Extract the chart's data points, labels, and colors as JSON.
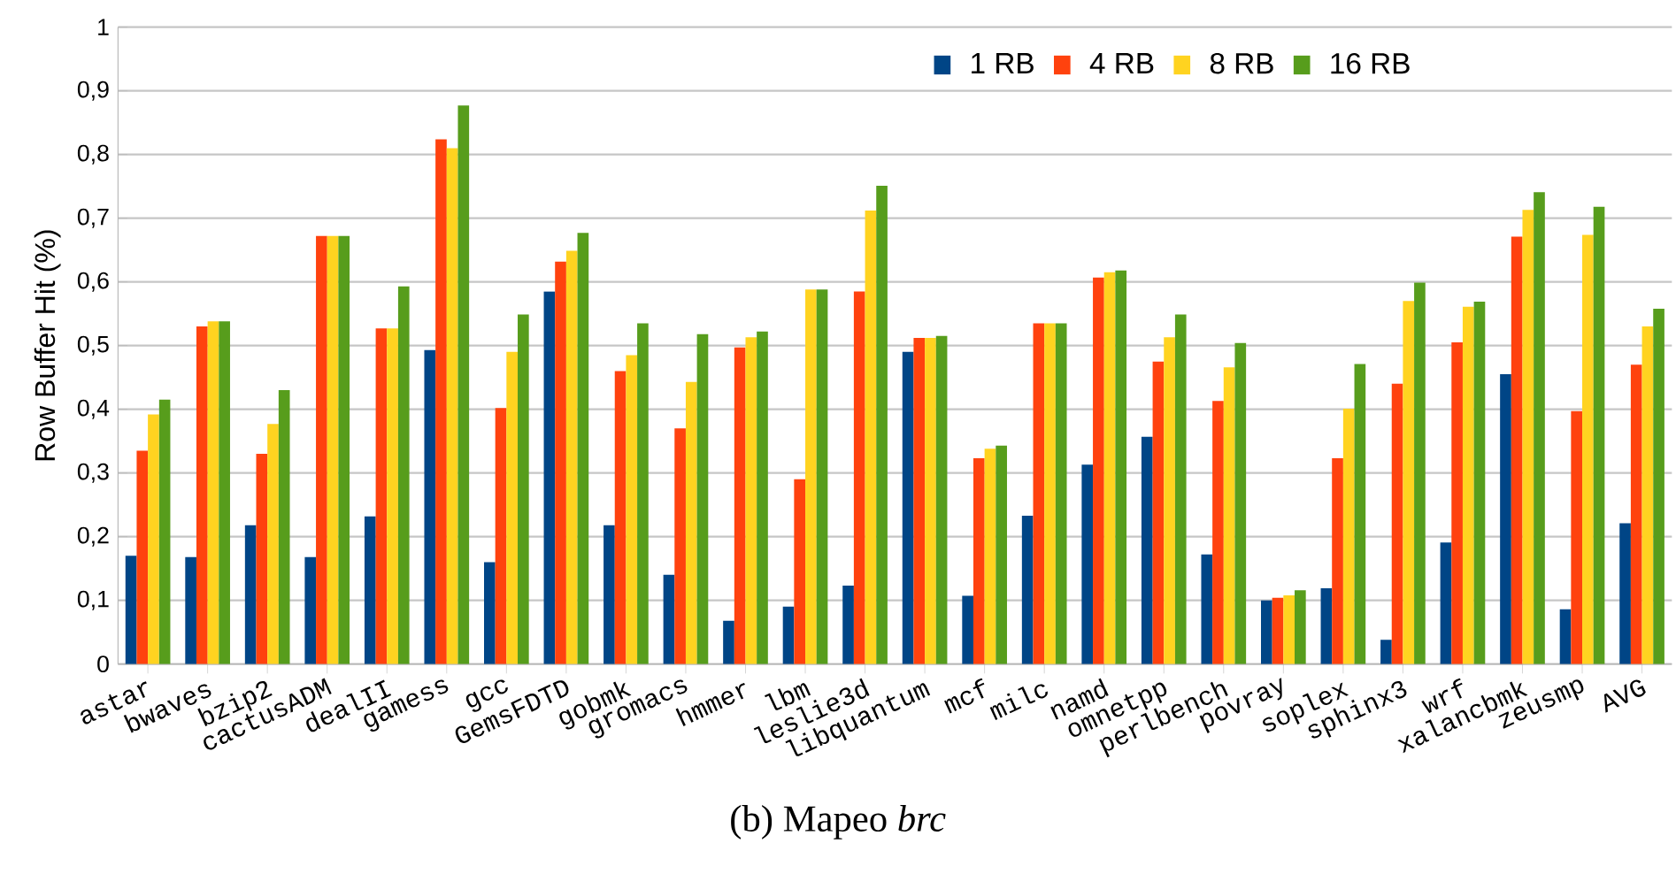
{
  "chart_data": {
    "type": "bar",
    "title": "(b) Mapeo *brc*",
    "ylabel": "Row Buffer Hit (%)",
    "categories": [
      "astar",
      "bwaves",
      "bzip2",
      "cactusADM",
      "dealII",
      "gamess",
      "gcc",
      "GemsFDTD",
      "gobmk",
      "gromacs",
      "hmmer",
      "lbm",
      "leslie3d",
      "libquantum",
      "mcf",
      "milc",
      "namd",
      "omnetpp",
      "perlbench",
      "povray",
      "soplex",
      "sphinx3",
      "wrf",
      "xalancbmk",
      "zeusmp",
      "AVG"
    ],
    "series": [
      {
        "name": "1 RB",
        "color": "#004586",
        "values": [
          0.17,
          0.168,
          0.218,
          0.168,
          0.232,
          0.493,
          0.16,
          0.585,
          0.218,
          0.14,
          0.068,
          0.09,
          0.123,
          0.49,
          0.107,
          0.233,
          0.313,
          0.357,
          0.172,
          0.1,
          0.119,
          0.038,
          0.191,
          0.455,
          0.086,
          0.221
        ]
      },
      {
        "name": "4 RB",
        "color": "#ff420e",
        "values": [
          0.335,
          0.53,
          0.33,
          0.672,
          0.527,
          0.824,
          0.402,
          0.632,
          0.46,
          0.37,
          0.497,
          0.29,
          0.585,
          0.512,
          0.323,
          0.535,
          0.607,
          0.475,
          0.413,
          0.104,
          0.323,
          0.44,
          0.505,
          0.671,
          0.397,
          0.47
        ]
      },
      {
        "name": "8 RB",
        "color": "#ffd320",
        "values": [
          0.392,
          0.538,
          0.377,
          0.672,
          0.527,
          0.81,
          0.49,
          0.649,
          0.485,
          0.443,
          0.513,
          0.588,
          0.712,
          0.512,
          0.338,
          0.535,
          0.615,
          0.513,
          0.466,
          0.108,
          0.401,
          0.57,
          0.561,
          0.713,
          0.674,
          0.53
        ]
      },
      {
        "name": "16 RB",
        "color": "#579d1c",
        "values": [
          0.415,
          0.538,
          0.43,
          0.672,
          0.593,
          0.877,
          0.549,
          0.677,
          0.535,
          0.518,
          0.522,
          0.588,
          0.751,
          0.515,
          0.343,
          0.535,
          0.618,
          0.549,
          0.504,
          0.116,
          0.471,
          0.599,
          0.569,
          0.741,
          0.718,
          0.558
        ]
      }
    ],
    "ylim": [
      0,
      1
    ],
    "yticks": [
      0,
      {
        "value": 0.1,
        "label": "0,1"
      },
      {
        "value": 0.2,
        "label": "0,2"
      },
      {
        "value": 0.3,
        "label": "0,3"
      },
      {
        "value": 0.4,
        "label": "0,4"
      },
      {
        "value": 0.5,
        "label": "0,5"
      },
      {
        "value": 0.6,
        "label": "0,6"
      },
      {
        "value": 0.7,
        "label": "0,7"
      },
      {
        "value": 0.8,
        "label": "0,8"
      },
      {
        "value": 0.9,
        "label": "0,9"
      },
      1
    ],
    "grid": "y",
    "legend": "top right"
  }
}
